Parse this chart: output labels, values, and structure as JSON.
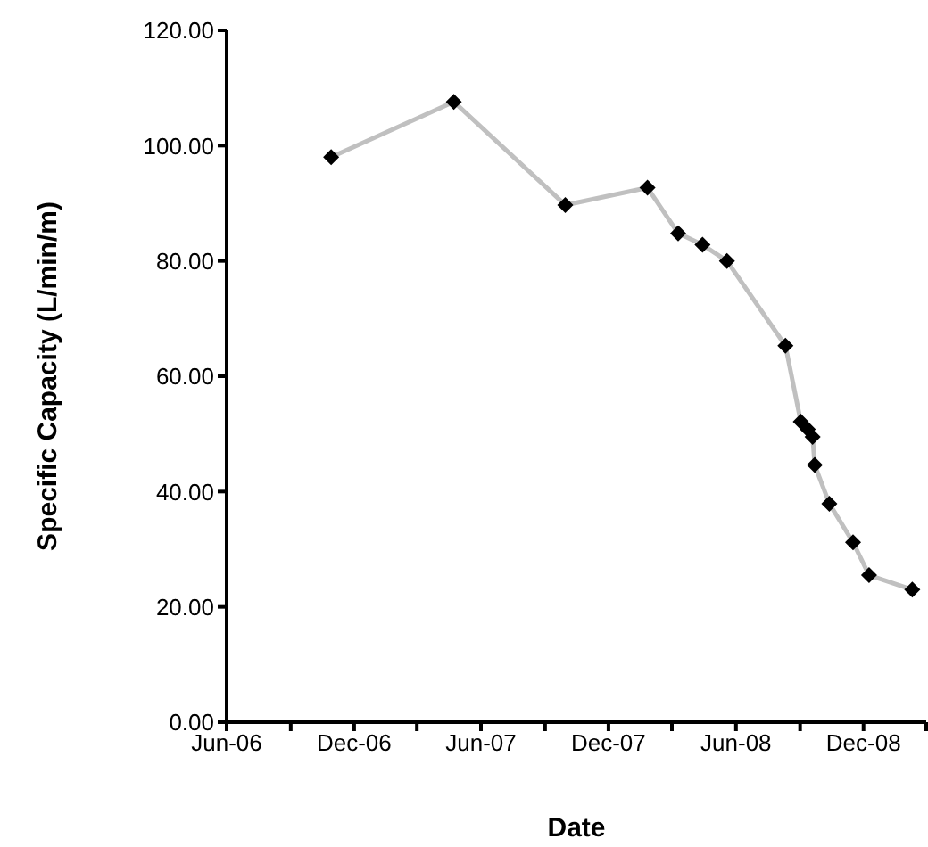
{
  "chart_data": {
    "type": "line",
    "xlabel": "Date",
    "ylabel": "Specific Capacity (L/min/m)",
    "x": [
      "2006-10-29",
      "2007-04-23",
      "2007-09-30",
      "2008-01-26",
      "2008-03-10",
      "2008-04-14",
      "2008-05-19",
      "2008-08-11",
      "2008-09-02",
      "2008-09-12",
      "2008-09-19",
      "2008-09-22",
      "2008-10-13",
      "2008-11-16",
      "2008-12-09",
      "2009-02-09"
    ],
    "series": [
      {
        "color": "#c0c0c0",
        "colors": [
          "#000000",
          "#000000",
          "#000000",
          "#000000",
          "#000000",
          "#000000",
          "#000000",
          "#000000",
          "#000000",
          "#000000",
          "#000000",
          "#000000",
          "#000000",
          "#000000",
          "#000000",
          "#000000"
        ],
        "values": [
          98,
          107.6,
          89.7,
          92.7,
          84.8,
          82.8,
          80,
          65.3,
          52.1,
          50.8,
          49.5,
          44.6,
          37.9,
          31.2,
          25.5,
          23
        ]
      }
    ],
    "xlim": [
      "2006-06-01",
      "2009-03-01"
    ],
    "xticks": [
      {
        "value": "2006-06-01",
        "label": "Jun-06"
      },
      {
        "value": "2006-09-01",
        "label": null
      },
      {
        "value": "2006-12-01",
        "label": "Dec-06"
      },
      {
        "value": "2007-03-01",
        "label": null
      },
      {
        "value": "2007-06-01",
        "label": "Jun-07"
      },
      {
        "value": "2007-09-01",
        "label": null
      },
      {
        "value": "2007-12-01",
        "label": "Dec-07"
      },
      {
        "value": "2008-03-01",
        "label": null
      },
      {
        "value": "2008-06-01",
        "label": "Jun-08"
      },
      {
        "value": "2008-09-01",
        "label": null
      },
      {
        "value": "2008-12-01",
        "label": "Dec-08"
      },
      {
        "value": "2009-03-01",
        "label": null
      }
    ],
    "ylim": [
      0,
      120
    ],
    "yticks": [
      {
        "value": 0,
        "label": "0.00"
      },
      {
        "value": 20,
        "label": "20.00"
      },
      {
        "value": 40,
        "label": "40.00"
      },
      {
        "value": 60,
        "label": "60.00"
      },
      {
        "value": 80,
        "label": "80.00"
      },
      {
        "value": 100,
        "label": "100.00"
      },
      {
        "value": 120,
        "label": "120.00"
      }
    ],
    "marker": "diamond",
    "grid": false,
    "legend": false
  }
}
